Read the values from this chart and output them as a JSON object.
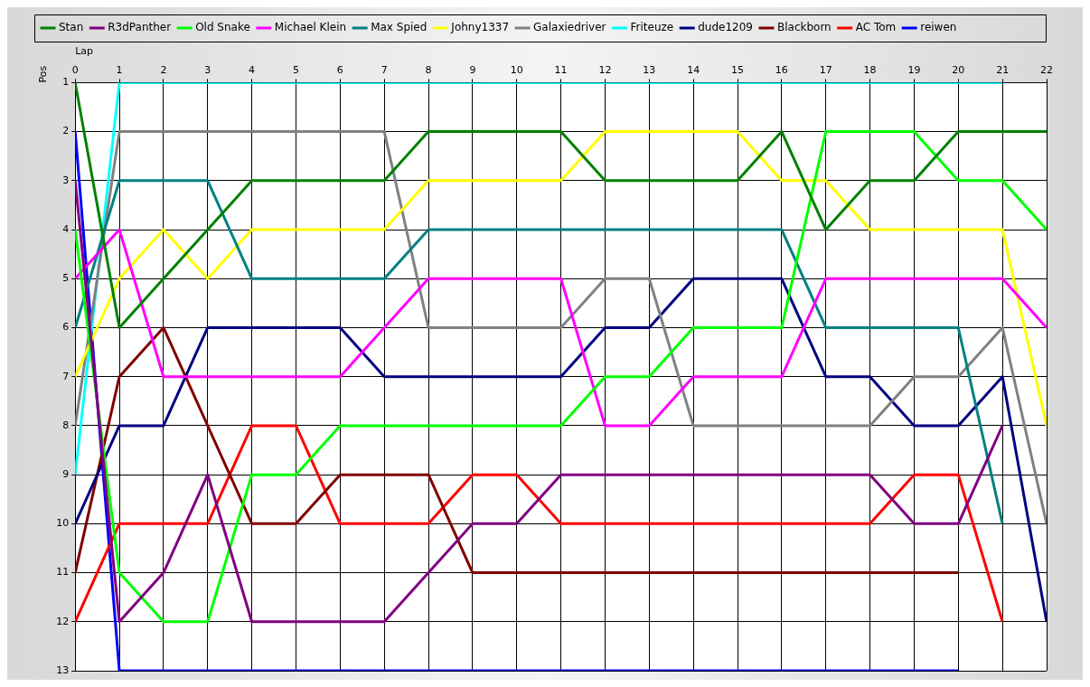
{
  "chart_data": {
    "type": "line",
    "xlabel": "Lap",
    "ylabel": "Pos",
    "x": [
      0,
      1,
      2,
      3,
      4,
      5,
      6,
      7,
      8,
      9,
      10,
      11,
      12,
      13,
      14,
      15,
      16,
      17,
      18,
      19,
      20,
      21,
      22
    ],
    "xlim": [
      0,
      22
    ],
    "xticks": [
      0,
      1,
      2,
      3,
      4,
      5,
      6,
      7,
      8,
      9,
      10,
      11,
      12,
      13,
      14,
      15,
      16,
      17,
      18,
      19,
      20,
      21,
      22
    ],
    "ylim": [
      13,
      1
    ],
    "yticks": [
      1,
      2,
      3,
      4,
      5,
      6,
      7,
      8,
      9,
      10,
      11,
      12,
      13
    ],
    "grid": true,
    "legend": "top",
    "marker": "none",
    "line_style": "solid",
    "series": [
      {
        "name": "Stan",
        "color": "#008000",
        "values": [
          1,
          6,
          5,
          4,
          3,
          3,
          3,
          3,
          2,
          2,
          2,
          2,
          3,
          3,
          3,
          3,
          2,
          4,
          3,
          3,
          2,
          2,
          2
        ]
      },
      {
        "name": "R3dPanther",
        "color": "#800080",
        "values": [
          3,
          12,
          11,
          9,
          12,
          12,
          12,
          12,
          11,
          10,
          10,
          9,
          9,
          9,
          9,
          9,
          9,
          9,
          9,
          10,
          10,
          8,
          null
        ]
      },
      {
        "name": "Old Snake",
        "color": "#00ff00",
        "values": [
          4,
          11,
          12,
          12,
          9,
          9,
          8,
          8,
          8,
          8,
          8,
          8,
          7,
          7,
          6,
          6,
          6,
          2,
          2,
          2,
          3,
          3,
          4
        ]
      },
      {
        "name": "Michael Klein",
        "color": "#ff00ff",
        "values": [
          5,
          4,
          7,
          7,
          7,
          7,
          7,
          6,
          5,
          5,
          5,
          5,
          8,
          8,
          7,
          7,
          7,
          5,
          5,
          5,
          5,
          5,
          6
        ]
      },
      {
        "name": "Max Spied",
        "color": "#008080",
        "values": [
          6,
          3,
          3,
          3,
          5,
          5,
          5,
          5,
          4,
          4,
          4,
          4,
          4,
          4,
          4,
          4,
          4,
          6,
          6,
          6,
          6,
          10,
          null
        ]
      },
      {
        "name": "Johny1337",
        "color": "#ffff00",
        "values": [
          7,
          5,
          4,
          5,
          4,
          4,
          4,
          4,
          3,
          3,
          3,
          3,
          2,
          2,
          2,
          2,
          3,
          3,
          4,
          4,
          4,
          4,
          8
        ]
      },
      {
        "name": "Galaxiedriver",
        "color": "#808080",
        "values": [
          8,
          2,
          2,
          2,
          2,
          2,
          2,
          2,
          6,
          6,
          6,
          6,
          5,
          5,
          8,
          8,
          8,
          8,
          8,
          7,
          7,
          6,
          10
        ]
      },
      {
        "name": "Friteuze",
        "color": "#00ffff",
        "values": [
          9,
          1,
          1,
          1,
          1,
          1,
          1,
          1,
          1,
          1,
          1,
          1,
          1,
          1,
          1,
          1,
          1,
          1,
          1,
          1,
          1,
          1,
          null
        ]
      },
      {
        "name": "dude1209",
        "color": "#000080",
        "values": [
          10,
          8,
          8,
          6,
          6,
          6,
          6,
          7,
          7,
          7,
          7,
          7,
          6,
          6,
          5,
          5,
          5,
          7,
          7,
          8,
          8,
          7,
          12
        ]
      },
      {
        "name": "Blackborn",
        "color": "#800000",
        "values": [
          11,
          7,
          6,
          8,
          10,
          10,
          9,
          9,
          9,
          11,
          11,
          11,
          11,
          11,
          11,
          11,
          11,
          11,
          11,
          11,
          11,
          null,
          null
        ]
      },
      {
        "name": "AC Tom",
        "color": "#ff0000",
        "values": [
          12,
          10,
          10,
          10,
          8,
          8,
          10,
          10,
          10,
          9,
          9,
          10,
          10,
          10,
          10,
          10,
          10,
          10,
          10,
          9,
          9,
          12,
          null
        ]
      },
      {
        "name": "reiwen",
        "color": "#0000ff",
        "values": [
          2,
          13,
          13,
          13,
          13,
          13,
          13,
          13,
          13,
          13,
          13,
          13,
          13,
          13,
          13,
          13,
          13,
          13,
          13,
          13,
          13,
          null,
          null
        ]
      }
    ]
  }
}
